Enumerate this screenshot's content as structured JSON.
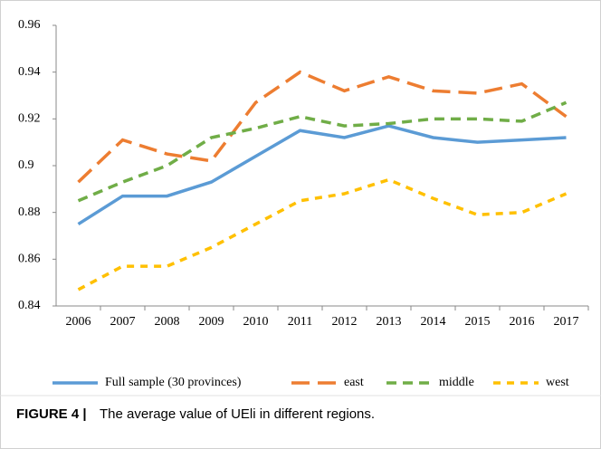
{
  "chart_data": {
    "type": "line",
    "categories": [
      "2006",
      "2007",
      "2008",
      "2009",
      "2010",
      "2011",
      "2012",
      "2013",
      "2014",
      "2015",
      "2016",
      "2017"
    ],
    "series": [
      {
        "name": "Full sample (30 provinces)",
        "color": "#5b9bd5",
        "dash": "solid",
        "values": [
          0.875,
          0.887,
          0.887,
          0.893,
          0.904,
          0.915,
          0.912,
          0.917,
          0.912,
          0.91,
          0.911,
          0.912
        ]
      },
      {
        "name": "east",
        "color": "#ed7d31",
        "dash": "long",
        "values": [
          0.893,
          0.911,
          0.905,
          0.902,
          0.927,
          0.94,
          0.932,
          0.938,
          0.932,
          0.931,
          0.935,
          0.921
        ]
      },
      {
        "name": "middle",
        "color": "#70ad47",
        "dash": "medium",
        "values": [
          0.885,
          0.893,
          0.9,
          0.912,
          0.916,
          0.921,
          0.917,
          0.918,
          0.92,
          0.92,
          0.919,
          0.927
        ]
      },
      {
        "name": "west",
        "color": "#ffc000",
        "dash": "short",
        "values": [
          0.847,
          0.857,
          0.857,
          0.865,
          0.875,
          0.885,
          0.888,
          0.894,
          0.886,
          0.879,
          0.88,
          0.888
        ]
      }
    ],
    "ylim": [
      0.84,
      0.96
    ],
    "yticks": [
      0.84,
      0.86,
      0.88,
      0.9,
      0.92,
      0.94,
      0.96
    ],
    "legend": "bottom",
    "caption": {
      "label": "FIGURE 4 |",
      "text": "The average value of UEli in different regions."
    }
  }
}
